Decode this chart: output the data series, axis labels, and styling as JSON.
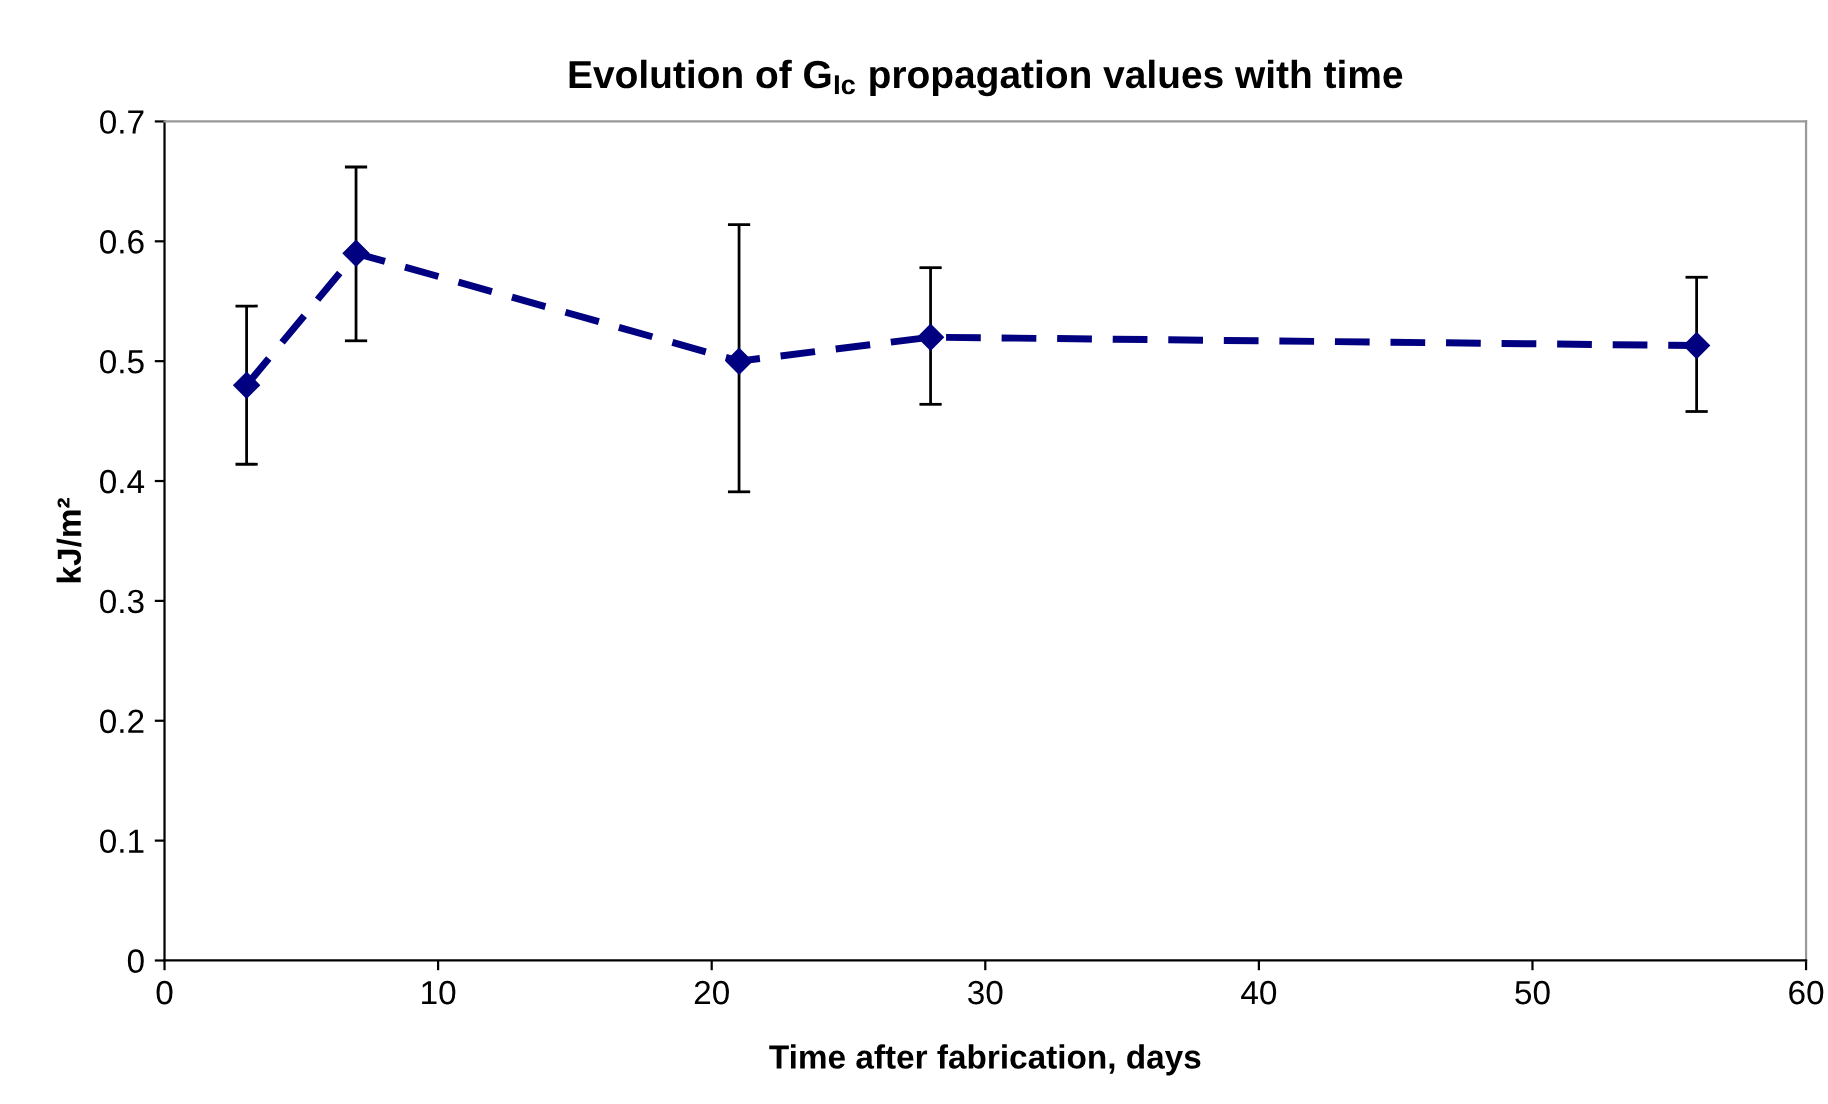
{
  "chart_data": {
    "type": "line",
    "title": "Evolution of G$_{Ic}$ propagation values with time",
    "xlabel": "Time after fabrication, days",
    "ylabel": "kJ/m²",
    "x": [
      3,
      7,
      21,
      28,
      56
    ],
    "series": [
      {
        "color": "#000080",
        "values": [
          0.48,
          0.59,
          0.5,
          0.52,
          0.513
        ],
        "errors": [
          [
            0.414,
            0.546
          ],
          [
            0.517,
            0.662
          ],
          [
            0.391,
            0.614
          ],
          [
            0.464,
            0.578
          ],
          [
            0.458,
            0.57
          ]
        ]
      }
    ],
    "xlim": [
      0,
      60
    ],
    "xticks": [
      0,
      10,
      20,
      30,
      40,
      50,
      60
    ],
    "ylim": [
      0,
      0.7
    ],
    "yticks": [
      0,
      0.1,
      0.2,
      0.3,
      0.4,
      0.5,
      0.6,
      0.7
    ],
    "marker": "diamond",
    "line_style": "dashed",
    "grid": false,
    "legend": false
  }
}
